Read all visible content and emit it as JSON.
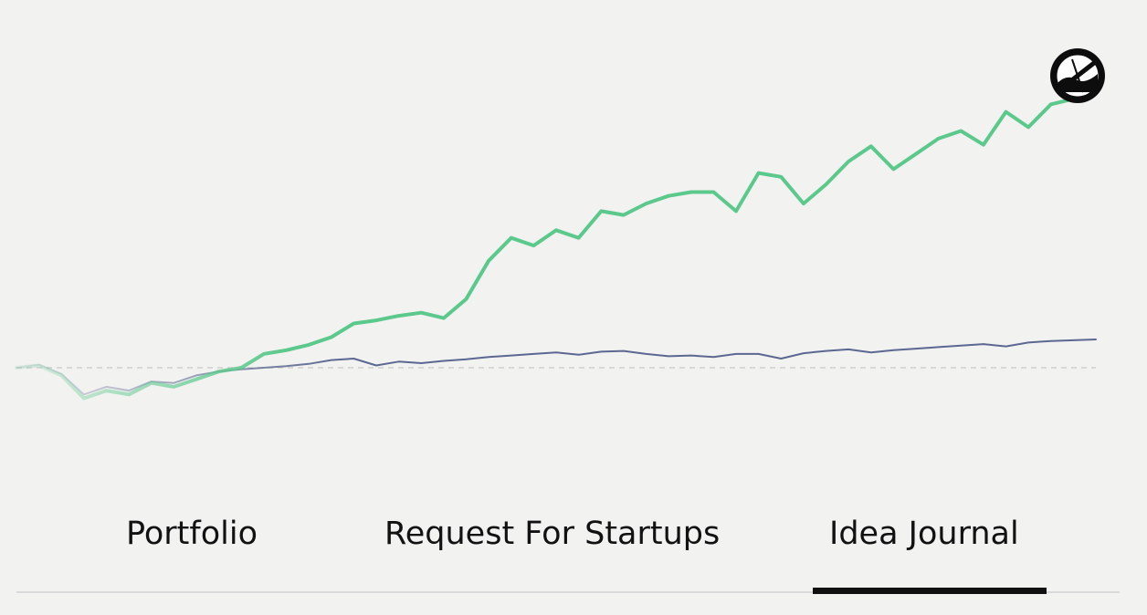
{
  "tabs": {
    "items": [
      {
        "label": "Portfolio",
        "selected": false
      },
      {
        "label": "Request For Startups",
        "selected": false
      },
      {
        "label": "Idea Journal",
        "selected": true
      }
    ]
  },
  "avatar": {
    "icon": "avatar-logo-icon"
  },
  "colors": {
    "primary_line": "#5cc98c",
    "secondary_line": "#5c6891",
    "baseline": "#cfcfcf",
    "tab_text": "#121212",
    "active_underline": "#101010",
    "background": "#f2f2f1"
  },
  "chart_data": {
    "type": "line",
    "baseline_dashed": true,
    "grid": false,
    "ylim": [
      -100,
      400
    ],
    "xlim": [
      0,
      100
    ],
    "series": [
      {
        "color": "#5cc98c",
        "style": "thick",
        "x": [
          0,
          2,
          4,
          6,
          8,
          10,
          12,
          14,
          16,
          18,
          20,
          22,
          24,
          26,
          28,
          30,
          32,
          34,
          36,
          38,
          40,
          42,
          44,
          46,
          48,
          50,
          52,
          54,
          56,
          58,
          60,
          62,
          64,
          66,
          68,
          70,
          72,
          74,
          76,
          78,
          80,
          82,
          84,
          86,
          88,
          90,
          92,
          94,
          96
        ],
        "y": [
          0,
          3,
          -10,
          -40,
          -30,
          -35,
          -20,
          -25,
          -15,
          -5,
          0,
          18,
          23,
          30,
          40,
          58,
          62,
          68,
          72,
          65,
          90,
          140,
          170,
          160,
          180,
          170,
          205,
          200,
          215,
          225,
          230,
          230,
          205,
          255,
          250,
          215,
          240,
          270,
          290,
          260,
          280,
          300,
          310,
          292,
          335,
          315,
          345,
          352,
          368
        ]
      },
      {
        "color": "#5c6891",
        "style": "thin",
        "x": [
          0,
          2,
          4,
          6,
          8,
          10,
          12,
          14,
          16,
          18,
          20,
          22,
          24,
          26,
          28,
          30,
          32,
          34,
          36,
          38,
          40,
          42,
          44,
          46,
          48,
          50,
          52,
          54,
          56,
          58,
          60,
          62,
          64,
          66,
          68,
          70,
          72,
          74,
          76,
          78,
          80,
          82,
          84,
          86,
          88,
          90,
          92,
          94,
          96
        ],
        "y": [
          0,
          4,
          -8,
          -35,
          -25,
          -30,
          -18,
          -20,
          -10,
          -5,
          -2,
          0,
          2,
          5,
          10,
          12,
          3,
          8,
          6,
          9,
          11,
          14,
          16,
          18,
          20,
          17,
          21,
          22,
          18,
          15,
          16,
          14,
          18,
          18,
          12,
          19,
          22,
          24,
          20,
          23,
          25,
          27,
          29,
          31,
          28,
          33,
          35,
          36,
          37
        ]
      }
    ]
  }
}
